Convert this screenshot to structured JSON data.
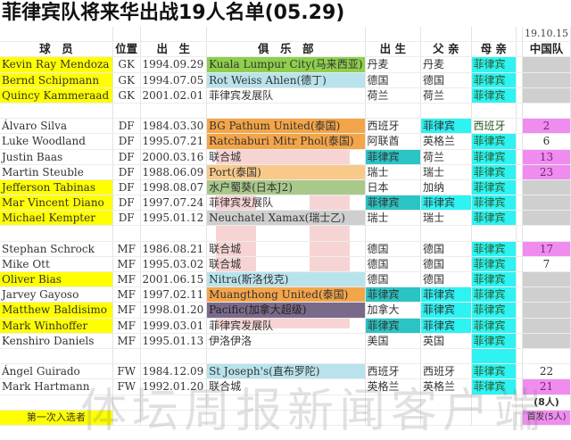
{
  "title": "菲律宾队将来华出战19人名单(05.29)",
  "date_label": "19.10.15",
  "headers": [
    "球　员",
    "位置",
    "出　生",
    "俱　乐　部",
    "出 生",
    "父 亲",
    "母 亲",
    "中国队"
  ],
  "colors": {
    "yellow": "#ffff00",
    "cyan": "#2ef3f3",
    "teal": "#2bc4c4",
    "green": "#8fcf4c",
    "lightblue": "#b9e3ec",
    "orange": "#f4a548",
    "lightorange": "#f9c98a",
    "olive": "#a8c98a",
    "purple": "#7a6a8a",
    "gray": "#cfcfcf",
    "magenta": "#f08cf0"
  },
  "rows": [
    {
      "name": "Kevin Ray Mendoza",
      "pos": "GK",
      "birth": "1994.09.29",
      "club": "Kuala Lumpur City(马来西亚)",
      "bplace": "丹麦",
      "father": "丹麦",
      "mother": "菲律宾",
      "cn": "",
      "nameBg": "yellow",
      "clubBg": "green",
      "motherBg": "cyan",
      "cnBg": "gray"
    },
    {
      "name": "Bernd Schipmann",
      "pos": "GK",
      "birth": "1994.07.05",
      "club": "Rot Weiss Ahlen(德丁)",
      "bplace": "德国",
      "father": "德国",
      "mother": "菲律宾",
      "cn": "",
      "nameBg": "yellow",
      "clubBg": "lightblue",
      "motherBg": "cyan",
      "cnBg": "gray"
    },
    {
      "name": "Quincy Kammeraad",
      "pos": "GK",
      "birth": "2001.02.01",
      "club": "菲律宾发展队",
      "bplace": "荷兰",
      "father": "荷兰",
      "mother": "菲律宾",
      "cn": "",
      "nameBg": "yellow",
      "motherBg": "cyan",
      "cnBg": "gray"
    },
    {
      "empty": true
    },
    {
      "name": "Álvaro Silva",
      "pos": "DF",
      "birth": "1984.03.30",
      "club": "BG Pathum United(泰国)",
      "bplace": "西班牙",
      "father": "菲律宾",
      "mother": "西班牙",
      "cn": "2",
      "clubBg": "orange",
      "fatherBg": "cyan",
      "cnBg": "magenta"
    },
    {
      "name": "Luke Woodland",
      "pos": "DF",
      "birth": "1995.07.21",
      "club": "Ratchaburi Mitr Phol(泰国)",
      "bplace": "阿联酋",
      "father": "英格兰",
      "mother": "菲律宾",
      "cn": "6",
      "clubBg": "orange",
      "motherBg": "cyan"
    },
    {
      "name": "Justin Baas",
      "pos": "DF",
      "birth": "2000.03.16",
      "club": "联合城",
      "bplace": "菲律宾",
      "father": "荷兰",
      "mother": "菲律宾",
      "cn": "13",
      "bplaceBg": "teal",
      "motherBg": "cyan",
      "cnBg": "magenta"
    },
    {
      "name": "Martin Steuble",
      "pos": "DF",
      "birth": "1988.06.09",
      "club": "Port(泰国)",
      "bplace": "瑞士",
      "father": "瑞士",
      "mother": "菲律宾",
      "cn": "23",
      "clubBg": "lightorange",
      "motherBg": "cyan",
      "cnBg": "magenta"
    },
    {
      "name": "Jefferson Tabinas",
      "pos": "DF",
      "birth": "1998.08.07",
      "club": "水户蜀葵(日本J2)",
      "bplace": "日本",
      "father": "加纳",
      "mother": "菲律宾",
      "cn": "",
      "nameBg": "yellow",
      "clubBg": "olive",
      "motherBg": "cyan",
      "cnBg": "gray"
    },
    {
      "name": "Mar Vincent Diano",
      "pos": "DF",
      "birth": "1997.07.24",
      "club": "菲律宾发展队",
      "bplace": "菲律宾",
      "father": "菲律宾",
      "mother": "菲律宾",
      "cn": "",
      "nameBg": "yellow",
      "bplaceBg": "teal",
      "fatherBg": "cyan",
      "motherBg": "cyan",
      "cnBg": "gray"
    },
    {
      "name": "Michael Kempter",
      "pos": "DF",
      "birth": "1995.01.12",
      "club": "Neuchatel Xamax(瑞士乙)",
      "bplace": "瑞士",
      "father": "瑞士",
      "mother": "菲律宾",
      "cn": "",
      "nameBg": "yellow",
      "clubBg": "gray",
      "motherBg": "cyan",
      "cnBg": "gray"
    },
    {
      "empty": true
    },
    {
      "name": "Stephan Schrock",
      "pos": "MF",
      "birth": "1986.08.21",
      "club": "联合城",
      "bplace": "德国",
      "father": "德国",
      "mother": "菲律宾",
      "cn": "17",
      "motherBg": "cyan",
      "cnBg": "magenta"
    },
    {
      "name": "Mike Ott",
      "pos": "MF",
      "birth": "1995.03.02",
      "club": "联合城",
      "bplace": "德国",
      "father": "德国",
      "mother": "菲律宾",
      "cn": "7",
      "motherBg": "cyan"
    },
    {
      "name": "Oliver Bias",
      "pos": "MF",
      "birth": "2001.06.15",
      "club": "Nitra(斯洛伐克)",
      "bplace": "德国",
      "father": "德国",
      "mother": "菲律宾",
      "cn": "",
      "nameBg": "yellow",
      "clubBg": "lightblue",
      "motherBg": "cyan",
      "cnBg": "gray"
    },
    {
      "name": "Jarvey Gayoso",
      "pos": "MF",
      "birth": "1997.02.11",
      "club": "Muangthong United(泰国)",
      "bplace": "菲律宾",
      "father": "菲律宾",
      "mother": "菲律宾",
      "cn": "",
      "clubBg": "orange",
      "bplaceBg": "teal",
      "fatherBg": "cyan",
      "motherBg": "cyan",
      "cnBg": "gray"
    },
    {
      "name": "Matthew Baldisimo",
      "pos": "MF",
      "birth": "1998.01.20",
      "club": "Pacific(加拿大超级)",
      "bplace": "加拿大",
      "father": "菲律宾",
      "mother": "菲律宾",
      "cn": "",
      "nameBg": "yellow",
      "clubBg": "purple",
      "fatherBg": "cyan",
      "motherBg": "cyan",
      "cnBg": "gray"
    },
    {
      "name": "Mark Winhoffer",
      "pos": "MF",
      "birth": "1999.03.01",
      "club": "菲律宾发展队",
      "bplace": "菲律宾",
      "father": "菲律宾",
      "mother": "菲律宾",
      "cn": "",
      "nameBg": "yellow",
      "bplaceBg": "teal",
      "fatherBg": "cyan",
      "motherBg": "cyan",
      "cnBg": "gray"
    },
    {
      "name": "Kenshiro Daniels",
      "pos": "MF",
      "birth": "1995.01.13",
      "club": "伊洛伊洛",
      "bplace": "美国",
      "father": "英国",
      "mother": "菲律宾",
      "cn": "",
      "motherBg": "cyan",
      "cnBg": "gray"
    },
    {
      "empty": true,
      "motherBg": "cyan"
    },
    {
      "name": "Ángel Guirado",
      "pos": "FW",
      "birth": "1984.12.09",
      "club": "St Joseph's(直布罗陀)",
      "bplace": "西班牙",
      "father": "西班牙",
      "mother": "菲律宾",
      "cn": "22",
      "clubBg": "lightblue",
      "motherBg": "cyan"
    },
    {
      "name": "Mark Hartmann",
      "pos": "FW",
      "birth": "1992.01.20",
      "club": "联合城",
      "bplace": "英格兰",
      "father": "英格兰",
      "mother": "菲律宾",
      "cn": "21",
      "motherBg": "cyan",
      "cnBg": "magenta"
    }
  ],
  "summary": {
    "china_count": "(8人)",
    "legend_first_call": "第一次入选者",
    "starters": "首发(5人)"
  },
  "watermark": "体坛周报新闻客户端"
}
